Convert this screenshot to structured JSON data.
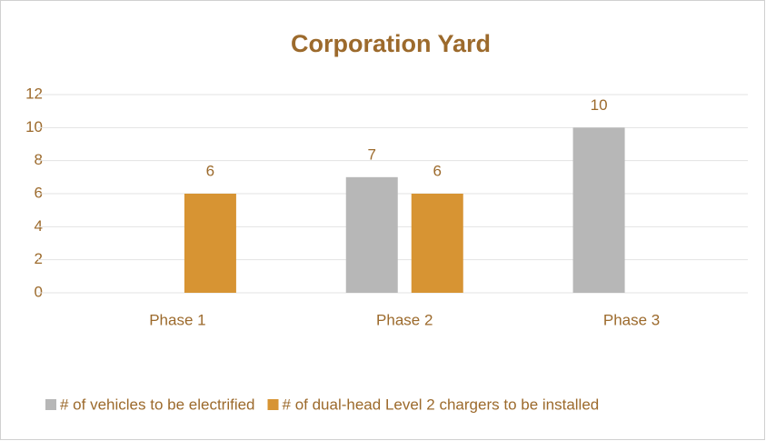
{
  "chart_data": {
    "type": "bar",
    "title": "Corporation Yard",
    "categories": [
      "Phase 1",
      "Phase 2",
      "Phase 3"
    ],
    "series": [
      {
        "name": "# of vehicles to be electrified",
        "color": "#b7b7b7",
        "values": [
          null,
          7,
          10
        ]
      },
      {
        "name": "# of dual-head Level 2 chargers to be installed",
        "color": "#d79433",
        "values": [
          6,
          6,
          null
        ]
      }
    ],
    "ylim": [
      0,
      12
    ],
    "yticks": [
      0,
      2,
      4,
      6,
      8,
      10,
      12
    ],
    "grid": true,
    "legend": "bottom"
  }
}
